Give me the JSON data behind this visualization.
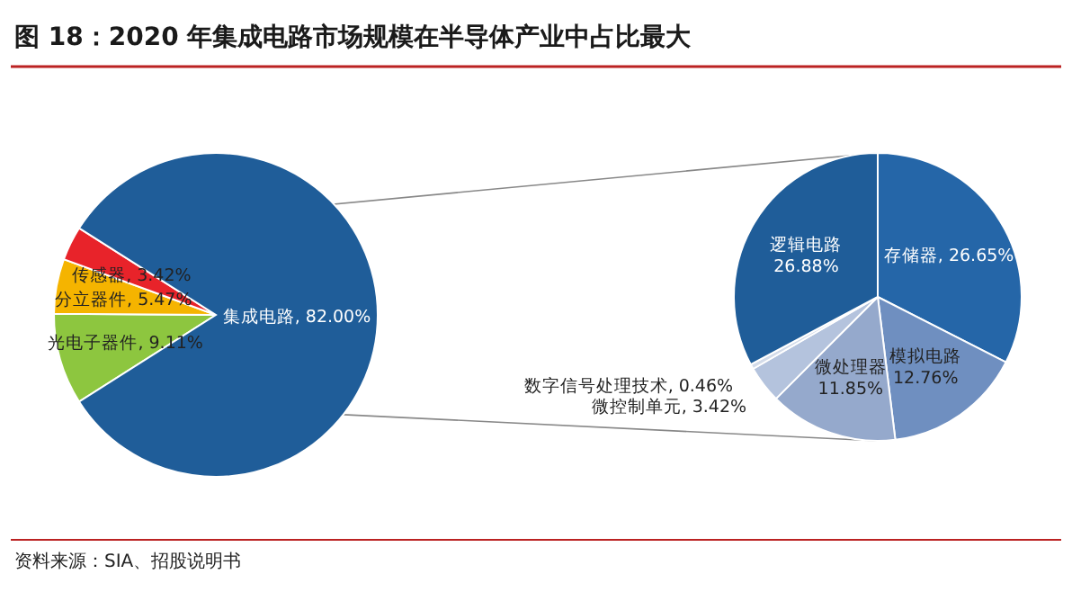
{
  "chart_data": [
    {
      "type": "pie",
      "title": "图 18：2020 年集成电路市场规模在半导体产业中占比最大",
      "categories": [
        "光电子器件",
        "分立器件",
        "传感器",
        "集成电路"
      ],
      "values": [
        9.11,
        5.47,
        3.42,
        82.0
      ],
      "value_labels": [
        "9.11%",
        "5.47%",
        "3.42%",
        "82.00%"
      ],
      "colors": [
        "#8dc63f",
        "#f5b400",
        "#e8232a",
        "#1f5d99"
      ],
      "annotations": [
        "资料来源：SIA、招股说明书"
      ]
    },
    {
      "type": "pie",
      "categories": [
        "存储器",
        "模拟电路",
        "微处理器",
        "微控制单元",
        "数字信号处理技术",
        "逻辑电路"
      ],
      "values": [
        26.65,
        12.76,
        11.85,
        3.42,
        0.46,
        26.88
      ],
      "value_labels": [
        "26.65%",
        "12.76%",
        "11.85%",
        "3.42%",
        "0.46%",
        "26.88%"
      ],
      "colors": [
        "#2566a8",
        "#6f8fc0",
        "#95a9cc",
        "#b4c3dd",
        "#d3dbe9",
        "#1f5d99"
      ]
    }
  ]
}
